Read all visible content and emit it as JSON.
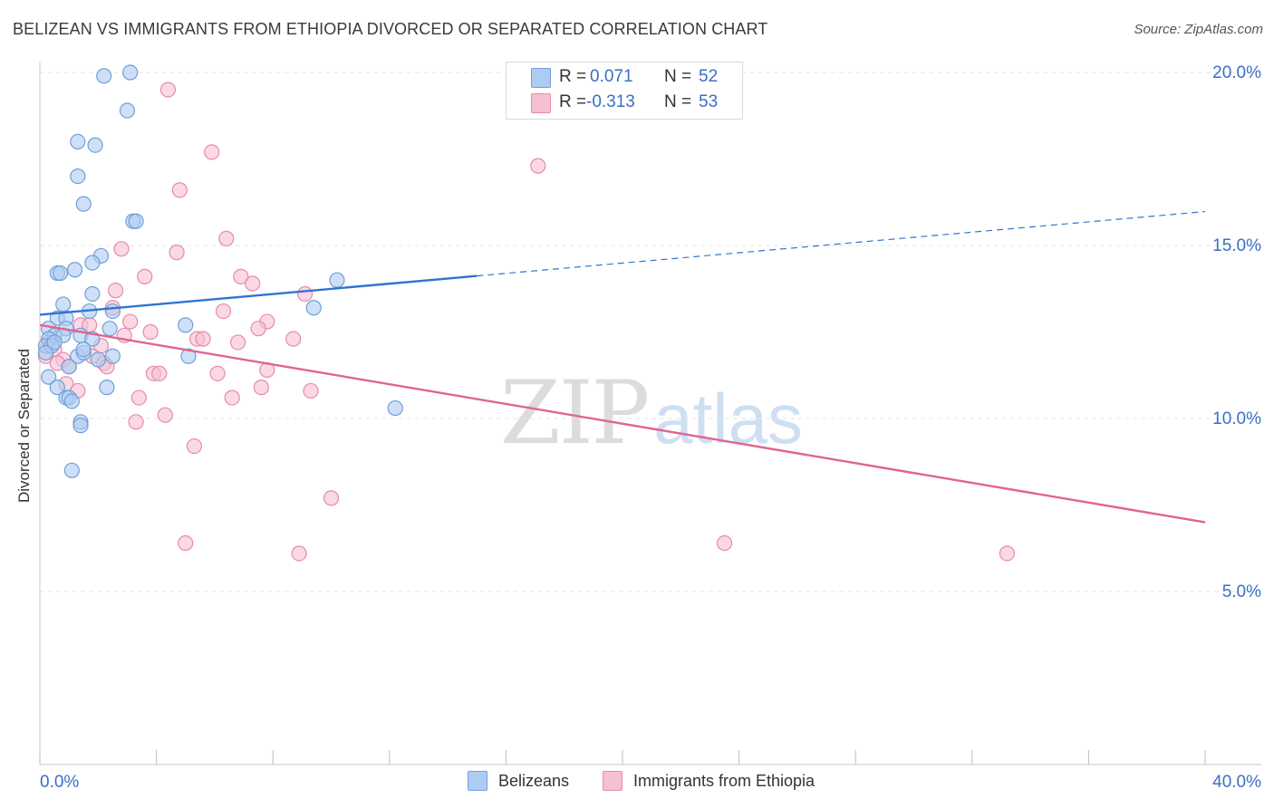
{
  "header": {
    "title": "BELIZEAN VS IMMIGRANTS FROM ETHIOPIA DIVORCED OR SEPARATED CORRELATION CHART",
    "source": "Source: ZipAtlas.com"
  },
  "watermark": {
    "zip": "ZIP",
    "atlas": "atlas"
  },
  "stats": {
    "belizeans": {
      "r_label": "R =",
      "r_value": "0.071",
      "n_label": "N =",
      "n_value": "52"
    },
    "ethiopia": {
      "r_label": "R =",
      "r_value": "-0.313",
      "n_label": "N =",
      "n_value": "53"
    }
  },
  "legend": {
    "belizeans": "Belizeans",
    "ethiopia": "Immigrants from Ethiopia"
  },
  "colors": {
    "blue_fill": "#aeccf2",
    "blue_stroke": "#6f9fd8",
    "blue_line": "#2f75cf",
    "pink_fill": "#f7bfd2",
    "pink_stroke": "#e88aa9",
    "pink_line": "#e06491",
    "value_text": "#3a6fc4",
    "grid": "#e6e6e6"
  },
  "chart_data": {
    "type": "scatter",
    "title": "BELIZEAN VS IMMIGRANTS FROM ETHIOPIA DIVORCED OR SEPARATED CORRELATION CHART",
    "xlabel": "",
    "ylabel": "Divorced or Separated",
    "xlim": [
      0,
      40
    ],
    "ylim": [
      0,
      20.5
    ],
    "x_tick_labels": [
      "0.0%",
      "40.0%"
    ],
    "y_ticks": [
      5,
      10,
      15,
      20
    ],
    "y_tick_labels": [
      "5.0%",
      "10.0%",
      "15.0%",
      "20.0%"
    ],
    "grid": true,
    "series": [
      {
        "name": "Belizeans",
        "r": 0.071,
        "n": 52,
        "trend": {
          "x_start": 0,
          "y_start": 13.0,
          "x_solid_end": 15.0,
          "y_solid_end": 14.12,
          "x_end": 40,
          "y_end": 15.98
        },
        "points": [
          {
            "x": 2.2,
            "y": 19.9
          },
          {
            "x": 3.1,
            "y": 20.0
          },
          {
            "x": 3.0,
            "y": 18.9
          },
          {
            "x": 1.3,
            "y": 18.0
          },
          {
            "x": 1.9,
            "y": 17.9
          },
          {
            "x": 1.3,
            "y": 17.0
          },
          {
            "x": 1.5,
            "y": 16.2
          },
          {
            "x": 3.2,
            "y": 15.7
          },
          {
            "x": 3.3,
            "y": 15.7
          },
          {
            "x": 2.1,
            "y": 14.7
          },
          {
            "x": 1.8,
            "y": 14.5
          },
          {
            "x": 0.6,
            "y": 14.2
          },
          {
            "x": 0.7,
            "y": 14.2
          },
          {
            "x": 1.2,
            "y": 14.3
          },
          {
            "x": 1.8,
            "y": 13.6
          },
          {
            "x": 10.2,
            "y": 14.0
          },
          {
            "x": 0.8,
            "y": 13.3
          },
          {
            "x": 1.7,
            "y": 13.1
          },
          {
            "x": 2.5,
            "y": 13.1
          },
          {
            "x": 9.4,
            "y": 13.2
          },
          {
            "x": 0.6,
            "y": 12.9
          },
          {
            "x": 0.9,
            "y": 12.9
          },
          {
            "x": 0.3,
            "y": 12.6
          },
          {
            "x": 5.0,
            "y": 12.7
          },
          {
            "x": 0.9,
            "y": 12.6
          },
          {
            "x": 0.5,
            "y": 12.4
          },
          {
            "x": 0.3,
            "y": 12.3
          },
          {
            "x": 0.8,
            "y": 12.4
          },
          {
            "x": 1.4,
            "y": 12.4
          },
          {
            "x": 1.8,
            "y": 12.3
          },
          {
            "x": 0.2,
            "y": 12.1
          },
          {
            "x": 0.4,
            "y": 12.1
          },
          {
            "x": 0.2,
            "y": 11.9
          },
          {
            "x": 1.3,
            "y": 11.8
          },
          {
            "x": 1.5,
            "y": 11.9
          },
          {
            "x": 2.5,
            "y": 11.8
          },
          {
            "x": 5.1,
            "y": 11.8
          },
          {
            "x": 2.0,
            "y": 11.7
          },
          {
            "x": 1.0,
            "y": 11.5
          },
          {
            "x": 0.3,
            "y": 11.2
          },
          {
            "x": 0.6,
            "y": 10.9
          },
          {
            "x": 2.3,
            "y": 10.9
          },
          {
            "x": 0.9,
            "y": 10.6
          },
          {
            "x": 1.0,
            "y": 10.6
          },
          {
            "x": 1.1,
            "y": 10.5
          },
          {
            "x": 12.2,
            "y": 10.3
          },
          {
            "x": 1.4,
            "y": 9.9
          },
          {
            "x": 1.4,
            "y": 9.8
          },
          {
            "x": 1.1,
            "y": 8.5
          },
          {
            "x": 0.5,
            "y": 12.2
          },
          {
            "x": 2.4,
            "y": 12.6
          },
          {
            "x": 1.5,
            "y": 12.0
          }
        ]
      },
      {
        "name": "Immigrants from Ethiopia",
        "r": -0.313,
        "n": 53,
        "trend": {
          "x_start": 0,
          "y_start": 12.7,
          "x_end": 40,
          "y_end": 7.0
        },
        "points": [
          {
            "x": 4.4,
            "y": 19.5
          },
          {
            "x": 5.9,
            "y": 17.7
          },
          {
            "x": 17.1,
            "y": 17.3
          },
          {
            "x": 4.8,
            "y": 16.6
          },
          {
            "x": 6.4,
            "y": 15.2
          },
          {
            "x": 2.8,
            "y": 14.9
          },
          {
            "x": 4.7,
            "y": 14.8
          },
          {
            "x": 3.6,
            "y": 14.1
          },
          {
            "x": 6.9,
            "y": 14.1
          },
          {
            "x": 7.3,
            "y": 13.9
          },
          {
            "x": 2.6,
            "y": 13.7
          },
          {
            "x": 9.1,
            "y": 13.6
          },
          {
            "x": 2.5,
            "y": 13.2
          },
          {
            "x": 6.3,
            "y": 13.1
          },
          {
            "x": 3.1,
            "y": 12.8
          },
          {
            "x": 7.8,
            "y": 12.8
          },
          {
            "x": 1.4,
            "y": 12.7
          },
          {
            "x": 1.7,
            "y": 12.7
          },
          {
            "x": 7.5,
            "y": 12.6
          },
          {
            "x": 3.8,
            "y": 12.5
          },
          {
            "x": 2.9,
            "y": 12.4
          },
          {
            "x": 8.7,
            "y": 12.3
          },
          {
            "x": 5.4,
            "y": 12.3
          },
          {
            "x": 5.6,
            "y": 12.3
          },
          {
            "x": 6.8,
            "y": 12.2
          },
          {
            "x": 0.3,
            "y": 12.2
          },
          {
            "x": 2.1,
            "y": 12.1
          },
          {
            "x": 0.5,
            "y": 12.0
          },
          {
            "x": 0.2,
            "y": 11.8
          },
          {
            "x": 0.8,
            "y": 11.7
          },
          {
            "x": 1.8,
            "y": 11.8
          },
          {
            "x": 2.2,
            "y": 11.6
          },
          {
            "x": 0.6,
            "y": 11.6
          },
          {
            "x": 1.0,
            "y": 11.5
          },
          {
            "x": 2.3,
            "y": 11.5
          },
          {
            "x": 7.8,
            "y": 11.4
          },
          {
            "x": 6.1,
            "y": 11.3
          },
          {
            "x": 3.9,
            "y": 11.3
          },
          {
            "x": 4.1,
            "y": 11.3
          },
          {
            "x": 0.9,
            "y": 11.0
          },
          {
            "x": 7.6,
            "y": 10.9
          },
          {
            "x": 1.3,
            "y": 10.8
          },
          {
            "x": 9.3,
            "y": 10.8
          },
          {
            "x": 6.6,
            "y": 10.6
          },
          {
            "x": 3.4,
            "y": 10.6
          },
          {
            "x": 4.3,
            "y": 10.1
          },
          {
            "x": 3.3,
            "y": 9.9
          },
          {
            "x": 5.3,
            "y": 9.2
          },
          {
            "x": 10.0,
            "y": 7.7
          },
          {
            "x": 5.0,
            "y": 6.4
          },
          {
            "x": 8.9,
            "y": 6.1
          },
          {
            "x": 23.5,
            "y": 6.4
          },
          {
            "x": 33.2,
            "y": 6.1
          }
        ]
      }
    ]
  }
}
